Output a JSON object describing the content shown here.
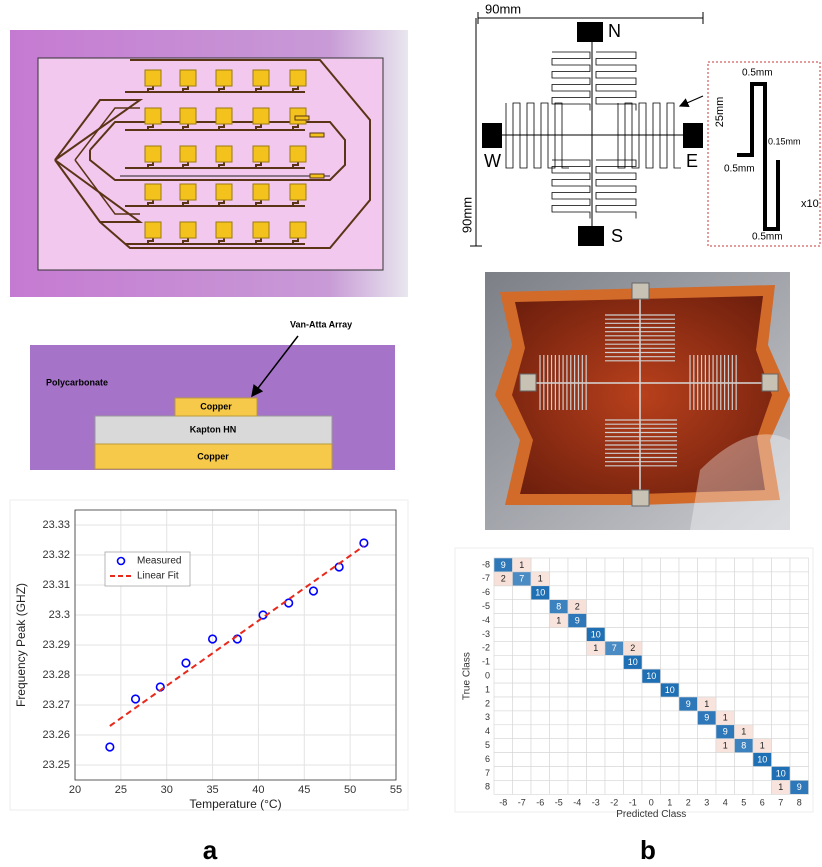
{
  "layer_diagram": {
    "annotation": "Van-Atta Array",
    "layers": [
      "Polycarbonate",
      "Copper",
      "Kapton HN",
      "Copper"
    ]
  },
  "dimension_diagram": {
    "width": "90mm",
    "height": "90mm",
    "ports": [
      "N",
      "W",
      "E",
      "S"
    ],
    "inset": {
      "height": "25mm",
      "top_width": "0.5mm",
      "gap": "0.15mm",
      "stub": "0.5mm",
      "bottom_width": "0.5mm",
      "repeat": "x10"
    }
  },
  "chart_data": [
    {
      "type": "scatter",
      "xlabel": "Temperature (°C)",
      "ylabel": "Frequency Peak (GHZ)",
      "xlim": [
        20,
        55
      ],
      "ylim": [
        23.245,
        23.335
      ],
      "xticks": [
        20,
        25,
        30,
        35,
        40,
        45,
        50,
        55
      ],
      "yticks": [
        23.25,
        23.26,
        23.27,
        23.28,
        23.29,
        23.3,
        23.31,
        23.32,
        23.33
      ],
      "grid": true,
      "legend": "upper left",
      "series": [
        {
          "name": "Measured",
          "color": "#0000ff",
          "marker": "circle",
          "x": [
            23.8,
            26.6,
            29.3,
            32.1,
            35.0,
            37.7,
            40.5,
            43.3,
            46.0,
            48.8,
            51.5
          ],
          "values": [
            23.256,
            23.272,
            23.276,
            23.284,
            23.292,
            23.292,
            23.3,
            23.304,
            23.308,
            23.316,
            23.324
          ]
        },
        {
          "name": "Linear Fit",
          "color": "#e8291c",
          "type": "line",
          "dash": true,
          "x": [
            23.8,
            51.5
          ],
          "values": [
            23.263,
            23.323
          ]
        }
      ]
    },
    {
      "type": "heatmap",
      "xlabel": "Predicted Class",
      "ylabel": "True Class",
      "categories": [
        -8,
        -7,
        -6,
        -5,
        -4,
        -3,
        -2,
        -1,
        0,
        1,
        2,
        3,
        4,
        5,
        6,
        7,
        8
      ],
      "rows": [
        -8,
        -7,
        -6,
        -5,
        -4,
        -3,
        -2,
        -1,
        0,
        1,
        2,
        3,
        4,
        5,
        6,
        7,
        8
      ],
      "diagonal_color": "#1f6fb4",
      "off_diagonal_color": "#e9a58d",
      "values": [
        [
          9,
          1,
          null,
          null,
          null,
          null,
          null,
          null,
          null,
          null,
          null,
          null,
          null,
          null,
          null,
          null,
          null
        ],
        [
          2,
          7,
          1,
          null,
          null,
          null,
          null,
          null,
          null,
          null,
          null,
          null,
          null,
          null,
          null,
          null,
          null
        ],
        [
          null,
          null,
          10,
          null,
          null,
          null,
          null,
          null,
          null,
          null,
          null,
          null,
          null,
          null,
          null,
          null,
          null
        ],
        [
          null,
          null,
          null,
          8,
          2,
          null,
          null,
          null,
          null,
          null,
          null,
          null,
          null,
          null,
          null,
          null,
          null
        ],
        [
          null,
          null,
          null,
          1,
          9,
          null,
          null,
          null,
          null,
          null,
          null,
          null,
          null,
          null,
          null,
          null,
          null
        ],
        [
          null,
          null,
          null,
          null,
          null,
          10,
          null,
          null,
          null,
          null,
          null,
          null,
          null,
          null,
          null,
          null,
          null
        ],
        [
          null,
          null,
          null,
          null,
          null,
          1,
          7,
          2,
          null,
          null,
          null,
          null,
          null,
          null,
          null,
          null,
          null
        ],
        [
          null,
          null,
          null,
          null,
          null,
          null,
          null,
          10,
          null,
          null,
          null,
          null,
          null,
          null,
          null,
          null,
          null
        ],
        [
          null,
          null,
          null,
          null,
          null,
          null,
          null,
          null,
          10,
          null,
          null,
          null,
          null,
          null,
          null,
          null,
          null
        ],
        [
          null,
          null,
          null,
          null,
          null,
          null,
          null,
          null,
          null,
          10,
          null,
          null,
          null,
          null,
          null,
          null,
          null
        ],
        [
          null,
          null,
          null,
          null,
          null,
          null,
          null,
          null,
          null,
          null,
          9,
          1,
          null,
          null,
          null,
          null,
          null
        ],
        [
          null,
          null,
          null,
          null,
          null,
          null,
          null,
          null,
          null,
          null,
          null,
          9,
          1,
          null,
          null,
          null,
          null
        ],
        [
          null,
          null,
          null,
          null,
          null,
          null,
          null,
          null,
          null,
          null,
          null,
          null,
          9,
          1,
          null,
          null,
          null
        ],
        [
          null,
          null,
          null,
          null,
          null,
          null,
          null,
          null,
          null,
          null,
          null,
          null,
          1,
          8,
          1,
          null,
          null
        ],
        [
          null,
          null,
          null,
          null,
          null,
          null,
          null,
          null,
          null,
          null,
          null,
          null,
          null,
          null,
          10,
          null,
          null
        ],
        [
          null,
          null,
          null,
          null,
          null,
          null,
          null,
          null,
          null,
          null,
          null,
          null,
          null,
          null,
          null,
          10,
          null
        ],
        [
          null,
          null,
          null,
          null,
          null,
          null,
          null,
          null,
          null,
          null,
          null,
          null,
          null,
          null,
          null,
          1,
          9
        ]
      ]
    }
  ],
  "captions": [
    "a",
    "b"
  ]
}
